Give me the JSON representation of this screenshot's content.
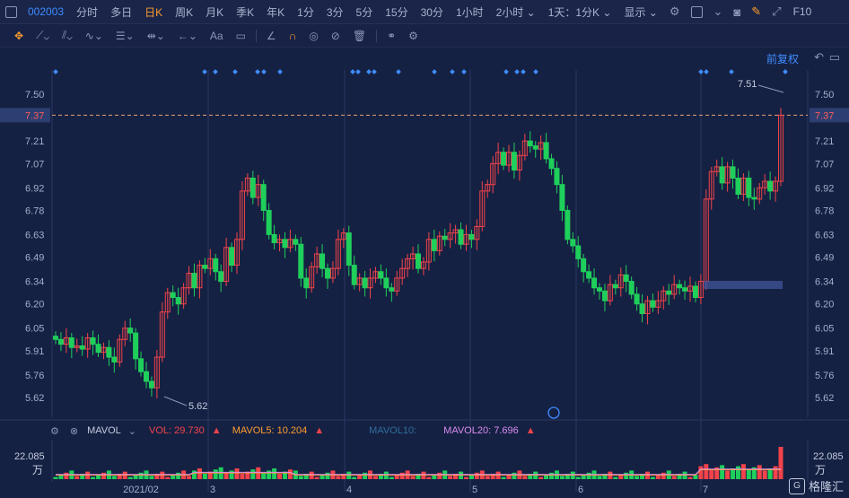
{
  "topbar": {
    "code": "002003",
    "periods": [
      "分时",
      "多日",
      "日K",
      "周K",
      "月K",
      "季K",
      "年K",
      "1分",
      "3分",
      "5分",
      "15分",
      "30分",
      "1小时",
      "2小时 ⌄",
      "1天：1分K ⌄",
      "显示 ⌄"
    ],
    "active_period": "日K",
    "f10": "F10"
  },
  "toolbar": {
    "text_tool": "Aa"
  },
  "chart": {
    "restore_label": "前复权",
    "price_labels": [
      "7.50",
      "7.37",
      "7.21",
      "7.07",
      "6.92",
      "6.78",
      "6.63",
      "6.49",
      "6.34",
      "6.20",
      "6.05",
      "5.91",
      "5.76",
      "5.62"
    ],
    "current_price": "7.37",
    "high_label": "7.51",
    "low_label": "5.62",
    "date_labels": [
      "2021/02",
      "3",
      "4",
      "5",
      "6",
      "7"
    ]
  },
  "volume": {
    "name": "MAVOL",
    "vol": "VOL: 29.730",
    "ma5": "MAVOL5: 10.204",
    "ma10": "MAVOL10:",
    "ma20": "MAVOL20: 7.696",
    "top_value": "22.085",
    "unit": "万"
  },
  "colors": {
    "up": "#f2434a",
    "down": "#1fcf5b",
    "accent": "#ff9d2e",
    "blue": "#3f8cff"
  },
  "logo": "格隆汇"
}
